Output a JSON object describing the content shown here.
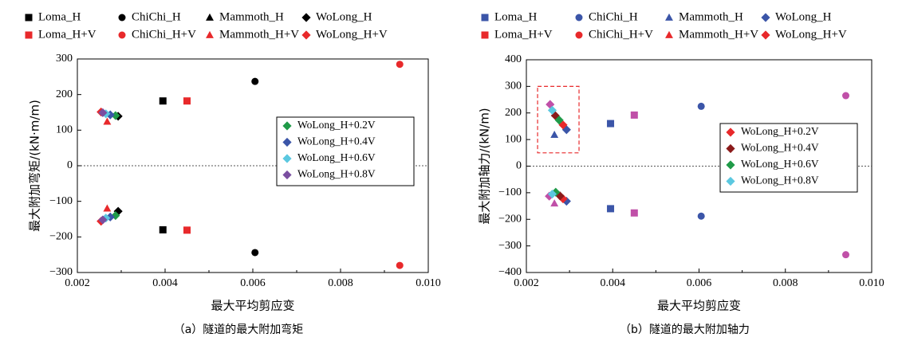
{
  "chart_data": [
    {
      "type": "scatter",
      "caption": "（a）隧道的最大附加弯矩",
      "xlabel": "最大平均剪应变",
      "ylabel": "最大附加弯矩/(kN·m/m)",
      "xlim": [
        0.002,
        0.01
      ],
      "ylim": [
        -300,
        300
      ],
      "x_ticks": [
        "0.002",
        "0.004",
        "0.006",
        "0.008",
        "0.010"
      ],
      "y_ticks": [
        "300",
        "200",
        "100",
        "0",
        "−100",
        "−200",
        "−300"
      ],
      "zero_line": true,
      "legend": [
        {
          "label": "Loma_H",
          "marker": "square",
          "color": "#000000"
        },
        {
          "label": "ChiChi_H",
          "marker": "circle",
          "color": "#000000"
        },
        {
          "label": "Mammoth_H",
          "marker": "triangle",
          "color": "#000000"
        },
        {
          "label": "WoLong_H",
          "marker": "diamond",
          "color": "#000000"
        },
        {
          "label": "Loma_H+V",
          "marker": "square",
          "color": "#e8292b"
        },
        {
          "label": "ChiChi_H+V",
          "marker": "circle",
          "color": "#e8292b"
        },
        {
          "label": "Mammoth_H+V",
          "marker": "triangle",
          "color": "#e8292b"
        },
        {
          "label": "WoLong_H+V",
          "marker": "diamond",
          "color": "#e8292b"
        }
      ],
      "inset_legend": [
        {
          "label": "WoLong_H+0.2V",
          "marker": "diamond",
          "color": "#1f9a48"
        },
        {
          "label": "WoLong_H+0.4V",
          "marker": "diamond",
          "color": "#3b55a8"
        },
        {
          "label": "WoLong_H+0.6V",
          "marker": "diamond",
          "color": "#5bc8e0"
        },
        {
          "label": "WoLong_H+0.8V",
          "marker": "diamond",
          "color": "#7a4ea0"
        }
      ],
      "points": [
        {
          "x": 0.00395,
          "y": 182,
          "marker": "square",
          "color": "#000000"
        },
        {
          "x": 0.00395,
          "y": -180,
          "marker": "square",
          "color": "#000000"
        },
        {
          "x": 0.0045,
          "y": 182,
          "marker": "square",
          "color": "#e8292b"
        },
        {
          "x": 0.0045,
          "y": -181,
          "marker": "square",
          "color": "#e8292b"
        },
        {
          "x": 0.00605,
          "y": 237,
          "marker": "circle",
          "color": "#000000"
        },
        {
          "x": 0.00605,
          "y": -244,
          "marker": "circle",
          "color": "#000000"
        },
        {
          "x": 0.00935,
          "y": 285,
          "marker": "circle",
          "color": "#e8292b"
        },
        {
          "x": 0.00935,
          "y": -280,
          "marker": "circle",
          "color": "#e8292b"
        },
        {
          "x": 0.00268,
          "y": 124,
          "marker": "triangle",
          "color": "#e8292b"
        },
        {
          "x": 0.00268,
          "y": -120,
          "marker": "triangle",
          "color": "#e8292b"
        },
        {
          "x": 0.00293,
          "y": 139,
          "marker": "diamond",
          "color": "#000000"
        },
        {
          "x": 0.00293,
          "y": -128,
          "marker": "diamond",
          "color": "#000000"
        },
        {
          "x": 0.00254,
          "y": 151,
          "marker": "diamond",
          "color": "#e8292b"
        },
        {
          "x": 0.00254,
          "y": -156,
          "marker": "diamond",
          "color": "#e8292b"
        },
        {
          "x": 0.00287,
          "y": 141,
          "marker": "diamond",
          "color": "#1f9a48"
        },
        {
          "x": 0.00287,
          "y": -140,
          "marker": "diamond",
          "color": "#1f9a48"
        },
        {
          "x": 0.00275,
          "y": 143,
          "marker": "diamond",
          "color": "#3b55a8"
        },
        {
          "x": 0.00275,
          "y": -144,
          "marker": "diamond",
          "color": "#3b55a8"
        },
        {
          "x": 0.00265,
          "y": 146,
          "marker": "diamond",
          "color": "#5bc8e0"
        },
        {
          "x": 0.00265,
          "y": -147,
          "marker": "diamond",
          "color": "#5bc8e0"
        },
        {
          "x": 0.00258,
          "y": 149,
          "marker": "diamond",
          "color": "#7a4ea0"
        },
        {
          "x": 0.00258,
          "y": -152,
          "marker": "diamond",
          "color": "#7a4ea0"
        }
      ]
    },
    {
      "type": "scatter",
      "caption": "（b）隧道的最大附加轴力",
      "xlabel": "最大平均剪应变",
      "ylabel": "最大附加轴力/(kN/m)",
      "xlim": [
        0.002,
        0.01
      ],
      "ylim": [
        -400,
        400
      ],
      "x_ticks": [
        "0.002",
        "0.004",
        "0.006",
        "0.008",
        "0.010"
      ],
      "y_ticks": [
        "400",
        "300",
        "200",
        "100",
        "0",
        "−100",
        "−200",
        "−300",
        "−400"
      ],
      "zero_line": true,
      "legend": [
        {
          "label": "Loma_H",
          "marker": "square",
          "color": "#3b55a8"
        },
        {
          "label": "ChiChi_H",
          "marker": "circle",
          "color": "#3b55a8"
        },
        {
          "label": "Mammoth_H",
          "marker": "triangle",
          "color": "#3b55a8"
        },
        {
          "label": "WoLong_H",
          "marker": "diamond",
          "color": "#3b55a8"
        },
        {
          "label": "Loma_H+V",
          "marker": "square",
          "color": "#e8292b"
        },
        {
          "label": "ChiChi_H+V",
          "marker": "circle",
          "color": "#e8292b"
        },
        {
          "label": "Mammoth_H+V",
          "marker": "triangle",
          "color": "#e8292b"
        },
        {
          "label": "WoLong_H+V",
          "marker": "diamond",
          "color": "#e8292b"
        }
      ],
      "inset_legend": [
        {
          "label": "WoLong_H+0.2V",
          "marker": "diamond",
          "color": "#e8292b"
        },
        {
          "label": "WoLong_H+0.4V",
          "marker": "diamond",
          "color": "#8b1a1a"
        },
        {
          "label": "WoLong_H+0.6V",
          "marker": "diamond",
          "color": "#1f9a48"
        },
        {
          "label": "WoLong_H+0.8V",
          "marker": "diamond",
          "color": "#5bc8e0"
        }
      ],
      "highlight_box": {
        "xlim": [
          0.00226,
          0.00322
        ],
        "ylim": [
          50,
          300
        ]
      },
      "points": [
        {
          "x": 0.00395,
          "y": 160,
          "marker": "square",
          "color": "#3b55a8"
        },
        {
          "x": 0.00395,
          "y": -160,
          "marker": "square",
          "color": "#3b55a8"
        },
        {
          "x": 0.0045,
          "y": 192,
          "marker": "square",
          "color": "#c050a8"
        },
        {
          "x": 0.0045,
          "y": -176,
          "marker": "square",
          "color": "#c050a8"
        },
        {
          "x": 0.00605,
          "y": 225,
          "marker": "circle",
          "color": "#3b55a8"
        },
        {
          "x": 0.00605,
          "y": -188,
          "marker": "circle",
          "color": "#3b55a8"
        },
        {
          "x": 0.0094,
          "y": 265,
          "marker": "circle",
          "color": "#c050a8"
        },
        {
          "x": 0.0094,
          "y": -333,
          "marker": "circle",
          "color": "#c050a8"
        },
        {
          "x": 0.00265,
          "y": 118,
          "marker": "triangle",
          "color": "#3b55a8"
        },
        {
          "x": 0.00265,
          "y": -140,
          "marker": "triangle",
          "color": "#c050a8"
        },
        {
          "x": 0.00293,
          "y": 137,
          "marker": "diamond",
          "color": "#3b55a8"
        },
        {
          "x": 0.00293,
          "y": -132,
          "marker": "diamond",
          "color": "#3b55a8"
        },
        {
          "x": 0.00255,
          "y": 232,
          "marker": "diamond",
          "color": "#c050a8"
        },
        {
          "x": 0.00253,
          "y": -113,
          "marker": "diamond",
          "color": "#c050a8"
        },
        {
          "x": 0.00285,
          "y": 155,
          "marker": "diamond",
          "color": "#e8292b"
        },
        {
          "x": 0.00285,
          "y": -123,
          "marker": "diamond",
          "color": "#e8292b"
        },
        {
          "x": 0.00267,
          "y": 190,
          "marker": "diamond",
          "color": "#8b1a1a"
        },
        {
          "x": 0.00278,
          "y": -112,
          "marker": "diamond",
          "color": "#8b1a1a"
        },
        {
          "x": 0.00276,
          "y": 173,
          "marker": "diamond",
          "color": "#1f9a48"
        },
        {
          "x": 0.00268,
          "y": -98,
          "marker": "diamond",
          "color": "#1f9a48"
        },
        {
          "x": 0.0026,
          "y": 210,
          "marker": "diamond",
          "color": "#5bc8e0"
        },
        {
          "x": 0.0026,
          "y": -105,
          "marker": "diamond",
          "color": "#5bc8e0"
        }
      ]
    }
  ]
}
